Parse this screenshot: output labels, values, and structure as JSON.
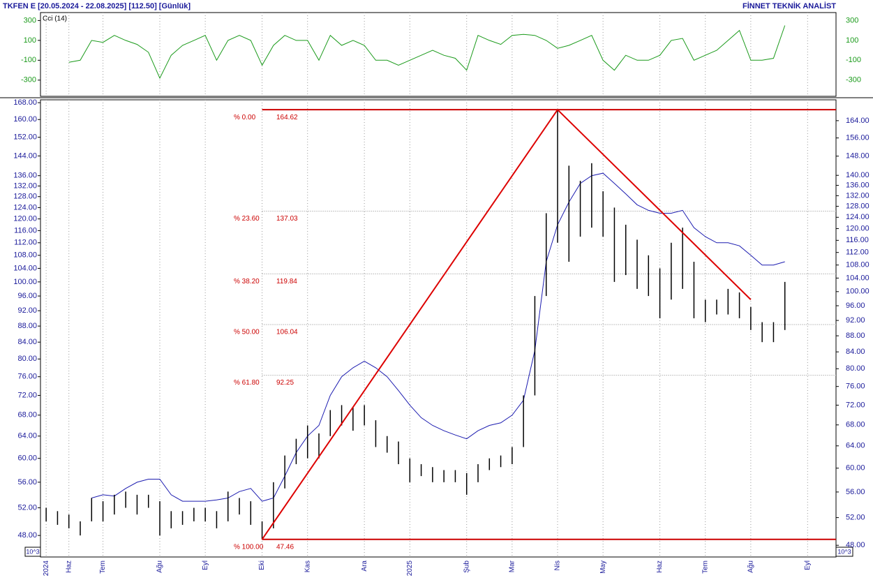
{
  "chart_data": {
    "type": "hilo",
    "title": "TKFEN E  [20.05.2024 - 22.08.2025]  [112.50]  [Günlük]",
    "brand": "FİNNET TEKNİK ANALİST",
    "scale_label": "10^3",
    "log_scale": true,
    "x_grid": true,
    "color": "#000000",
    "categories": [
      "2024",
      null,
      "Haz",
      null,
      null,
      "Tem",
      null,
      null,
      null,
      null,
      "Ağu",
      null,
      null,
      null,
      "Eyl",
      null,
      null,
      null,
      null,
      "Eki",
      null,
      null,
      null,
      "Kas",
      null,
      null,
      null,
      null,
      "Ara",
      null,
      null,
      null,
      "2025",
      null,
      null,
      null,
      null,
      "Şub",
      null,
      null,
      null,
      "Mar",
      null,
      null,
      null,
      "Nis",
      null,
      null,
      null,
      "May",
      null,
      null,
      null,
      null,
      "Haz",
      null,
      null,
      null,
      "Tem",
      null,
      null,
      null,
      "Ağu",
      null,
      null,
      null,
      null,
      "Eyl",
      null,
      null
    ],
    "high": [
      52,
      51.5,
      51,
      50,
      53.5,
      53,
      54,
      54.5,
      54,
      54,
      53,
      51.5,
      51.5,
      52,
      52,
      51.5,
      54.5,
      53.5,
      53,
      50,
      56,
      60.5,
      63.5,
      66,
      64.5,
      69,
      70,
      69.5,
      70,
      67,
      64,
      63,
      60,
      59,
      58.5,
      58,
      58,
      57.5,
      59,
      60,
      60.5,
      62,
      72,
      96,
      122,
      164.62,
      140,
      134,
      141,
      130,
      124,
      118,
      113,
      108,
      104,
      112,
      117,
      106,
      95,
      95,
      98,
      97,
      93,
      89,
      89,
      100,
      null,
      null,
      null,
      null
    ],
    "low": [
      50,
      49.5,
      49,
      48,
      50,
      50,
      51,
      52,
      51,
      52,
      48,
      49,
      49.5,
      50,
      50,
      49,
      50,
      51,
      49.5,
      47.46,
      49,
      55,
      59,
      60,
      60,
      64,
      66,
      65,
      66,
      62,
      61,
      59,
      56,
      57,
      56,
      56,
      56,
      54,
      56,
      58,
      58.5,
      59,
      62,
      72,
      96,
      112,
      106,
      114,
      117,
      114,
      100,
      102,
      98,
      96,
      90,
      95,
      98,
      90,
      89,
      91,
      91,
      90,
      87,
      84,
      84,
      87,
      null,
      null,
      null,
      null
    ],
    "moving_average": {
      "color": "#1c1cb0",
      "values": [
        null,
        null,
        null,
        null,
        53.5,
        54,
        53.8,
        55,
        56,
        56.5,
        56.5,
        54,
        53,
        53,
        53,
        53.2,
        53.5,
        54.5,
        55,
        53,
        53.5,
        57,
        61,
        64,
        66,
        72,
        76,
        78,
        79.5,
        78,
        76,
        73,
        70,
        67.5,
        66,
        65,
        64.2,
        63.5,
        65,
        66,
        66.5,
        68,
        71,
        82,
        106,
        118,
        126,
        133,
        136,
        137,
        133,
        129,
        125,
        123,
        122,
        122,
        123,
        117,
        114,
        112,
        112,
        111,
        108,
        105,
        105,
        106,
        null,
        null,
        null,
        null
      ]
    },
    "ylim": [
      45.1,
      169.4
    ],
    "yticks": [
      {
        "value": 48,
        "label": "48.00"
      },
      {
        "value": 52,
        "label": "52.00"
      },
      {
        "value": 56,
        "label": "56.00"
      },
      {
        "value": 60,
        "label": "60.00"
      },
      {
        "value": 64,
        "label": "64.00"
      },
      {
        "value": 68,
        "label": "68.00"
      },
      {
        "value": 72,
        "label": "72.00"
      },
      {
        "value": 76,
        "label": "76.00"
      },
      {
        "value": 80,
        "label": "80.00"
      },
      {
        "value": 84,
        "label": "84.00"
      },
      {
        "value": 88,
        "label": "88.00"
      },
      {
        "value": 92,
        "label": "92.00"
      },
      {
        "value": 96,
        "label": "96.00"
      },
      {
        "value": 100,
        "label": "100.00"
      },
      {
        "value": 104,
        "label": "104.00"
      },
      {
        "value": 108,
        "label": "108.00"
      },
      {
        "value": 112,
        "label": "112.00"
      },
      {
        "value": 116,
        "label": "116.00"
      },
      {
        "value": 120,
        "label": "120.00"
      },
      {
        "value": 124,
        "label": "124.00"
      },
      {
        "value": 128,
        "label": "128.00"
      },
      {
        "value": 132,
        "label": "132.00"
      },
      {
        "value": 136,
        "label": "136.00"
      },
      {
        "value": 144,
        "label": "144.00"
      },
      {
        "value": 152,
        "label": "152.00"
      },
      {
        "value": 160,
        "label": "160.00"
      },
      {
        "value": 168,
        "label": "168.00"
      }
    ],
    "y2lim": [
      46.4,
      174.2
    ],
    "y2ticks": [
      {
        "value": 48,
        "label": "48.00"
      },
      {
        "value": 52,
        "label": "52.00"
      },
      {
        "value": 56,
        "label": "56.00"
      },
      {
        "value": 60,
        "label": "60.00"
      },
      {
        "value": 64,
        "label": "64.00"
      },
      {
        "value": 68,
        "label": "68.00"
      },
      {
        "value": 72,
        "label": "72.00"
      },
      {
        "value": 76,
        "label": "76.00"
      },
      {
        "value": 80,
        "label": "80.00"
      },
      {
        "value": 84,
        "label": "84.00"
      },
      {
        "value": 88,
        "label": "88.00"
      },
      {
        "value": 92,
        "label": "92.00"
      },
      {
        "value": 96,
        "label": "96.00"
      },
      {
        "value": 100,
        "label": "100.00"
      },
      {
        "value": 104,
        "label": "104.00"
      },
      {
        "value": 108,
        "label": "108.00"
      },
      {
        "value": 112,
        "label": "112.00"
      },
      {
        "value": 116,
        "label": "116.00"
      },
      {
        "value": 120,
        "label": "120.00"
      },
      {
        "value": 124,
        "label": "124.00"
      },
      {
        "value": 128,
        "label": "128.00"
      },
      {
        "value": 132,
        "label": "132.00"
      },
      {
        "value": 136,
        "label": "136.00"
      },
      {
        "value": 140,
        "label": "140.00"
      },
      {
        "value": 148,
        "label": "148.00"
      },
      {
        "value": 156,
        "label": "156.00"
      },
      {
        "value": 164,
        "label": "164.00"
      }
    ],
    "indicator": {
      "name": "Cci (14)",
      "type": "line",
      "color": "#1a9a1a",
      "values": [
        null,
        null,
        -120,
        -100,
        100,
        80,
        150,
        100,
        60,
        -20,
        -280,
        -50,
        50,
        100,
        150,
        -100,
        100,
        150,
        100,
        -150,
        50,
        150,
        100,
        100,
        -100,
        150,
        50,
        100,
        50,
        -100,
        -100,
        -150,
        -100,
        -50,
        0,
        -50,
        -80,
        -200,
        150,
        100,
        60,
        150,
        160,
        150,
        100,
        20,
        50,
        100,
        150,
        -100,
        -200,
        -50,
        -100,
        -100,
        -50,
        100,
        120,
        -100,
        -50,
        0,
        100,
        200,
        -100,
        -100,
        -80,
        250,
        null,
        null,
        null,
        null
      ],
      "ylim": [
        -463,
        380
      ],
      "yticks": [
        300,
        100,
        -100,
        -300
      ]
    },
    "fibonacci": {
      "color": "#cc0000",
      "levels": [
        {
          "percent": 0,
          "percent_label": "% 0.00",
          "value": 164.62
        },
        {
          "percent": 23.6,
          "percent_label": "% 23.60",
          "value": 137.03
        },
        {
          "percent": 38.2,
          "percent_label": "% 38.20",
          "value": 119.84
        },
        {
          "percent": 50,
          "percent_label": "% 50.00",
          "value": 106.04
        },
        {
          "percent": 61.8,
          "percent_label": "% 61.80",
          "value": 92.25
        },
        {
          "percent": 100,
          "percent_label": "% 100.00",
          "value": 47.46
        }
      ]
    },
    "trendlines": {
      "color": "#dd0000",
      "lines": [
        {
          "x": [
            19,
            45
          ],
          "y": [
            47.46,
            164.62
          ]
        },
        {
          "x": [
            45,
            62
          ],
          "y": [
            164.62,
            95
          ]
        }
      ]
    }
  }
}
